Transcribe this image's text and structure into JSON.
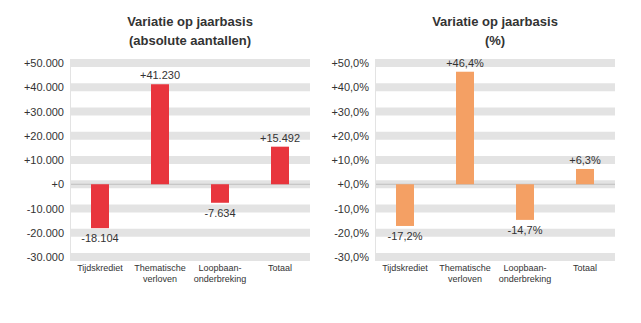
{
  "chart_data": [
    {
      "type": "bar",
      "title": "Variatie op jaarbasis",
      "subtitle": "(absolute aantallen)",
      "categories": [
        "Tijdskrediet",
        "Thematische\nverloven",
        "Loopbaan-\nonderbreking",
        "Totaal"
      ],
      "values": [
        -18104,
        41230,
        -7634,
        15492
      ],
      "value_labels": [
        "-18.104",
        "+41.230",
        "-7.634",
        "+15.492"
      ],
      "color": "#e8353d",
      "ylim": [
        -30000,
        50000
      ],
      "yticks": [
        {
          "value": -30000,
          "label": "-30.000"
        },
        {
          "value": -20000,
          "label": "-20.000"
        },
        {
          "value": -10000,
          "label": "-10.000"
        },
        {
          "value": 0,
          "label": "+0"
        },
        {
          "value": 10000,
          "label": "+10.000"
        },
        {
          "value": 20000,
          "label": "+20.000"
        },
        {
          "value": 30000,
          "label": "+30.000"
        },
        {
          "value": 40000,
          "label": "+40.000"
        },
        {
          "value": 50000,
          "label": "+50.000"
        }
      ],
      "grid": true,
      "data_labels": true
    },
    {
      "type": "bar",
      "title": "Variatie op jaarbasis",
      "subtitle": "(%)",
      "categories": [
        "Tijdskrediet",
        "Thematische\nverloven",
        "Loopbaan-\nonderbreking",
        "Totaal"
      ],
      "values": [
        -17.2,
        46.4,
        -14.7,
        6.3
      ],
      "value_labels": [
        "-17,2%",
        "+46,4%",
        "-14,7%",
        "+6,3%"
      ],
      "color": "#f4a064",
      "ylim": [
        -30,
        50
      ],
      "yticks": [
        {
          "value": -30,
          "label": "-30,0%"
        },
        {
          "value": -20,
          "label": "-20,0%"
        },
        {
          "value": -10,
          "label": "-10,0%"
        },
        {
          "value": 0,
          "label": "+0,0%"
        },
        {
          "value": 10,
          "label": "+10,0%"
        },
        {
          "value": 20,
          "label": "+20,0%"
        },
        {
          "value": 30,
          "label": "+30,0%"
        },
        {
          "value": 40,
          "label": "+40,0%"
        },
        {
          "value": 50,
          "label": "+50,0%"
        }
      ],
      "grid": true,
      "data_labels": true
    }
  ]
}
